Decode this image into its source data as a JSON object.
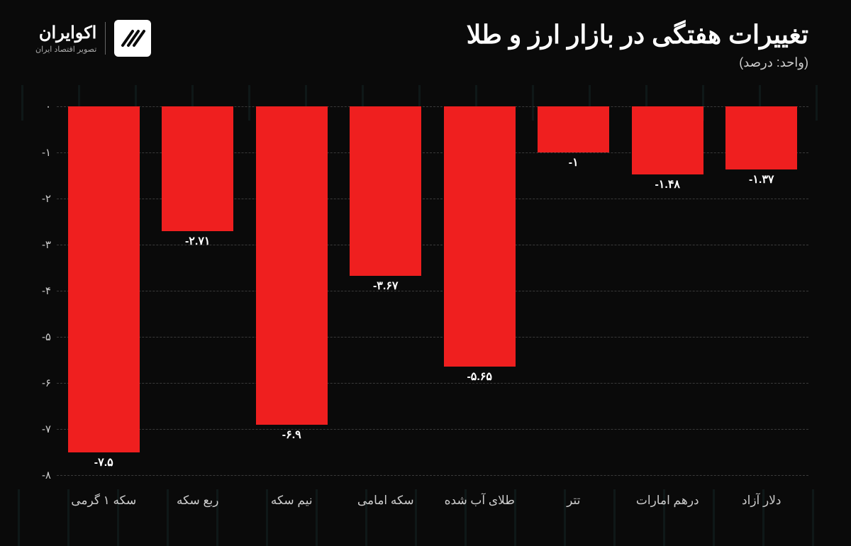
{
  "header": {
    "title": "تغییرات هفتگی در بازار ارز و طلا",
    "subtitle": "(واحد: درصد)"
  },
  "logo": {
    "name": "اکوایران",
    "tagline": "تصویر اقتصاد ایران"
  },
  "chart": {
    "type": "bar",
    "direction": "rtl",
    "background_color": "#0a0a0a",
    "bar_color": "#ef1f1f",
    "grid_color": "#3a3a3a",
    "grid_style": "dashed",
    "text_color": "#ffffff",
    "axis_label_color": "#cccccc",
    "title_fontsize": 36,
    "subtitle_fontsize": 18,
    "bar_label_fontsize": 16,
    "xtick_fontsize": 17,
    "ytick_fontsize": 15,
    "ylim": [
      -8,
      0
    ],
    "ytick_step": 1,
    "yticks": [
      {
        "value": 0,
        "label": "۰"
      },
      {
        "value": -1,
        "label": "-۱"
      },
      {
        "value": -2,
        "label": "-۲"
      },
      {
        "value": -3,
        "label": "-۳"
      },
      {
        "value": -4,
        "label": "-۴"
      },
      {
        "value": -5,
        "label": "-۵"
      },
      {
        "value": -6,
        "label": "-۶"
      },
      {
        "value": -7,
        "label": "-۷"
      },
      {
        "value": -8,
        "label": "-۸"
      }
    ],
    "bar_width": 0.76,
    "categories": [
      "سکه ۱ گرمی",
      "ربع سکه",
      "نیم سکه",
      "سکه امامی",
      "طلای آب شده",
      "تتر",
      "درهم امارات",
      "دلار آزاد"
    ],
    "values": [
      -7.5,
      -2.71,
      -6.9,
      -3.67,
      -5.65,
      -1,
      -1.48,
      -1.37
    ],
    "value_labels": [
      "-۷.۵",
      "-۲.۷۱",
      "-۶.۹",
      "-۳.۶۷",
      "-۵.۶۵",
      "-۱",
      "-۱.۴۸",
      "-۱.۳۷"
    ]
  }
}
